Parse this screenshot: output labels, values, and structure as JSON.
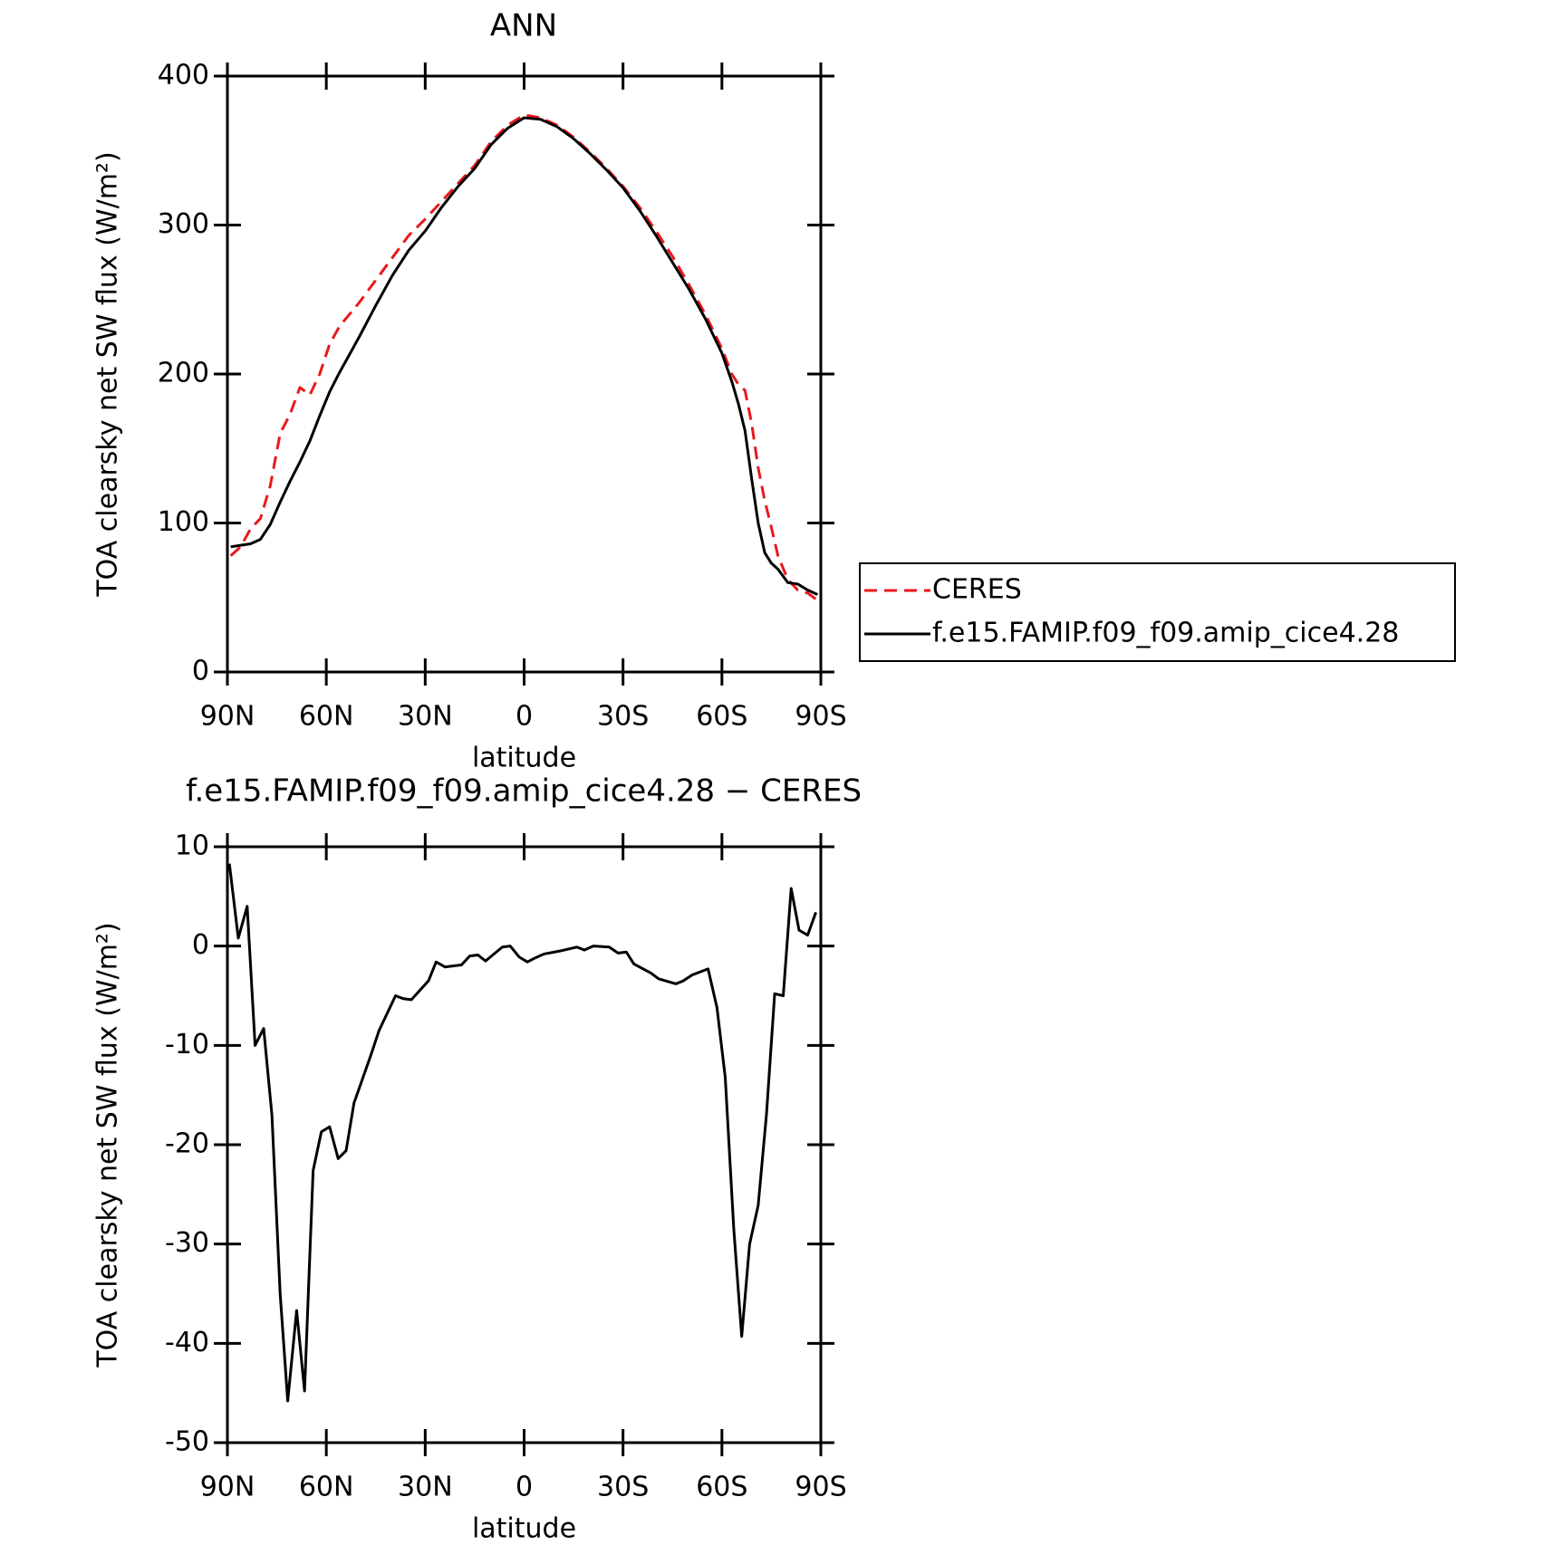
{
  "chart_data": [
    {
      "type": "line",
      "title": "ANN",
      "ylabel": "TOA clearsky net SW flux (W/m²)",
      "xlabel": "latitude",
      "x": [
        89,
        86,
        83,
        80,
        77,
        74,
        71,
        68,
        65,
        62,
        59,
        56,
        53,
        50,
        45,
        40,
        35,
        30,
        25,
        20,
        15,
        10,
        5,
        0,
        -5,
        -10,
        -15,
        -20,
        -25,
        -30,
        -35,
        -40,
        -45,
        -50,
        -55,
        -60,
        -63,
        -65,
        -67,
        -69,
        -71,
        -73,
        -75,
        -77,
        -80,
        -83,
        -86,
        -89
      ],
      "series": [
        {
          "name": "CERES",
          "color": "#e8191c",
          "line_style": "dashed",
          "values": [
            78,
            84,
            96,
            103,
            125,
            160,
            173,
            191,
            186,
            200,
            220,
            232,
            240,
            248,
            263,
            278,
            293,
            304,
            316,
            328,
            340,
            356,
            367,
            374,
            372,
            367,
            359,
            349,
            338,
            326,
            312,
            296,
            279,
            260,
            240,
            217,
            200,
            193,
            189,
            167,
            137,
            115,
            97,
            78,
            62,
            55,
            53,
            48
          ]
        },
        {
          "name": "f.e15.FAMIP.f09_f09.amip_cice4.28",
          "color": "#000000",
          "line_style": "solid",
          "values": [
            84,
            85,
            86,
            89,
            99,
            114,
            128,
            141,
            155,
            172,
            188,
            201,
            213,
            225,
            246,
            266,
            283,
            296,
            312,
            326,
            338,
            354,
            365,
            372,
            371,
            366,
            358,
            348,
            337,
            325,
            310,
            293,
            275,
            257,
            237,
            214,
            195,
            180,
            162,
            130,
            100,
            80,
            73,
            69,
            60,
            59,
            55,
            52
          ]
        }
      ],
      "xlim": [
        90,
        -90
      ],
      "xticks": [
        {
          "value": 90,
          "label": "90N"
        },
        {
          "value": 60,
          "label": "60N"
        },
        {
          "value": 30,
          "label": "30N"
        },
        0,
        {
          "value": -30,
          "label": "30S"
        },
        {
          "value": -60,
          "label": "60S"
        },
        {
          "value": -90,
          "label": "90S"
        }
      ],
      "ylim": [
        0,
        400
      ],
      "yticks": [
        0,
        100,
        200,
        300,
        400
      ],
      "grid": false,
      "legend": "outside-right"
    },
    {
      "type": "line",
      "title": "f.e15.FAMIP.f09_f09.amip_cice4.28 − CERES",
      "ylabel": "TOA clearsky net SW flux (W/m²)",
      "xlabel": "latitude",
      "x": [
        89.4,
        86.7,
        84,
        81.6,
        79,
        76.5,
        74,
        71.7,
        69,
        66.6,
        64,
        61.5,
        59,
        56.4,
        54,
        51.6,
        46.5,
        44,
        39,
        36.6,
        34.2,
        29,
        26.7,
        24,
        19,
        16.5,
        14,
        11.7,
        6.6,
        4.2,
        1.5,
        -1,
        -3.3,
        -6,
        -10.8,
        -16,
        -18.3,
        -21,
        -25.8,
        -28.5,
        -31,
        -33.3,
        -38.4,
        -40.8,
        -46,
        -48.3,
        -51,
        -55.8,
        -58.5,
        -61,
        -63.6,
        -66,
        -68.4,
        -71,
        -73.5,
        -76,
        -78.6,
        -81,
        -83.4,
        -86,
        -88.5
      ],
      "series": [
        {
          "color": "#000000",
          "line_style": "solid",
          "values": [
            8.3,
            0.8,
            4,
            -10,
            -8.3,
            -17,
            -35,
            -45.8,
            -36.7,
            -44.8,
            -22.6,
            -18.7,
            -18.2,
            -21.4,
            -20.6,
            -15.8,
            -11,
            -8.5,
            -5,
            -5.3,
            -5.4,
            -3.5,
            -1.6,
            -2.1,
            -1.9,
            -1,
            -0.9,
            -1.5,
            -0.1,
            0,
            -1.1,
            -1.6,
            -1.2,
            -0.8,
            -0.5,
            -0.1,
            -0.4,
            0,
            -0.1,
            -0.7,
            -0.6,
            -1.8,
            -2.7,
            -3.3,
            -3.8,
            -3.5,
            -2.9,
            -2.3,
            -6.2,
            -13.2,
            -28.5,
            -39.3,
            -30,
            -26.1,
            -17,
            -4.8,
            -5,
            5.8,
            1.6,
            1.1,
            3.4
          ]
        }
      ],
      "xlim": [
        90,
        -90
      ],
      "xticks": [
        {
          "value": 90,
          "label": "90N"
        },
        {
          "value": 60,
          "label": "60N"
        },
        {
          "value": 30,
          "label": "30N"
        },
        0,
        {
          "value": -30,
          "label": "30S"
        },
        {
          "value": -60,
          "label": "60S"
        },
        {
          "value": -90,
          "label": "90S"
        }
      ],
      "ylim": [
        -50,
        10
      ],
      "yticks": [
        -50,
        -40,
        -30,
        -20,
        -10,
        0,
        10
      ],
      "grid": false
    }
  ]
}
